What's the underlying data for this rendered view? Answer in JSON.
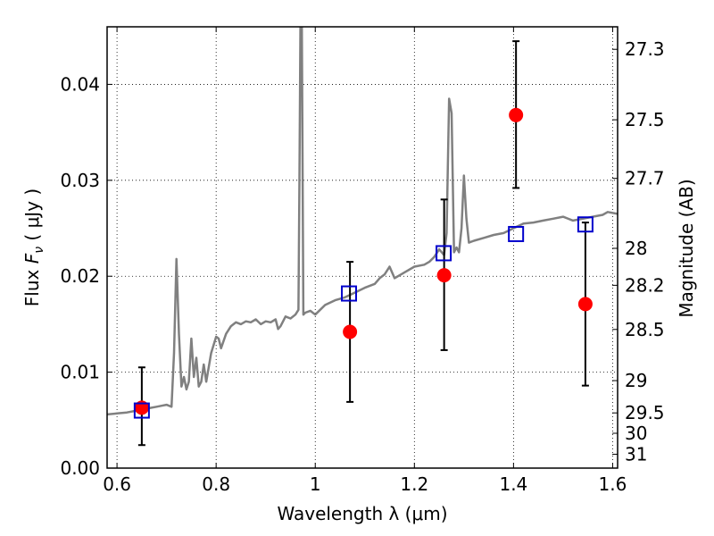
{
  "chart_data": {
    "type": "scatter",
    "title": "",
    "xlabel": "Wavelength  λ (μm)",
    "ylabel": "Flux  F_ν  ( μJy )",
    "ylabel_parts": {
      "prefix": "Flux  ",
      "symbol": "F",
      "subscript": "ν",
      "suffix": "  ( μJy )"
    },
    "y2label": "Magnitude (AB)",
    "xlim": [
      0.58,
      1.61
    ],
    "ylim": [
      0.0,
      0.046
    ],
    "grid": true,
    "x_ticks": [
      0.6,
      0.8,
      1.0,
      1.2,
      1.4,
      1.6
    ],
    "x_tick_labels": [
      "0.6",
      "0.8",
      "1",
      "1.2",
      "1.4",
      "1.6"
    ],
    "y_ticks": [
      0.0,
      0.01,
      0.02,
      0.03,
      0.04
    ],
    "y_tick_labels": [
      "0.00",
      "0.01",
      "0.02",
      "0.03",
      "0.04"
    ],
    "y2_ticks": [
      27.3,
      27.5,
      27.7,
      28,
      28.2,
      28.5,
      29,
      29.5,
      30,
      31
    ],
    "y2_tick_labels": [
      "27.3",
      "27.5",
      "27.7",
      "28",
      "28.2",
      "28.5",
      "29",
      "29.5",
      "30",
      "31"
    ],
    "colors": {
      "model": "#808080",
      "observed": "#ff0000",
      "model_photometry": "#0000cc",
      "errorbar": "#000000"
    },
    "series": [
      {
        "name": "model spectrum",
        "kind": "line",
        "x": [
          0.58,
          0.6,
          0.62,
          0.64,
          0.66,
          0.68,
          0.69,
          0.7,
          0.71,
          0.715,
          0.72,
          0.725,
          0.73,
          0.735,
          0.74,
          0.745,
          0.75,
          0.755,
          0.76,
          0.765,
          0.77,
          0.775,
          0.78,
          0.79,
          0.8,
          0.805,
          0.81,
          0.82,
          0.83,
          0.84,
          0.85,
          0.86,
          0.87,
          0.88,
          0.89,
          0.9,
          0.91,
          0.92,
          0.925,
          0.93,
          0.94,
          0.95,
          0.96,
          0.966,
          0.968,
          0.97,
          0.973,
          0.976,
          0.98,
          0.99,
          1.0,
          1.02,
          1.04,
          1.06,
          1.08,
          1.1,
          1.12,
          1.13,
          1.14,
          1.15,
          1.16,
          1.18,
          1.2,
          1.22,
          1.23,
          1.24,
          1.25,
          1.26,
          1.265,
          1.27,
          1.275,
          1.28,
          1.285,
          1.29,
          1.295,
          1.3,
          1.305,
          1.31,
          1.32,
          1.34,
          1.36,
          1.38,
          1.4,
          1.42,
          1.44,
          1.46,
          1.48,
          1.5,
          1.52,
          1.54,
          1.56,
          1.58,
          1.59,
          1.61
        ],
        "y": [
          0.0056,
          0.0057,
          0.0058,
          0.006,
          0.0062,
          0.0064,
          0.0065,
          0.0066,
          0.0064,
          0.012,
          0.0218,
          0.014,
          0.0085,
          0.0095,
          0.0082,
          0.009,
          0.0135,
          0.0095,
          0.0115,
          0.0085,
          0.009,
          0.0108,
          0.009,
          0.012,
          0.0137,
          0.0135,
          0.0125,
          0.014,
          0.0148,
          0.0152,
          0.015,
          0.0153,
          0.0152,
          0.0155,
          0.015,
          0.0153,
          0.0152,
          0.0155,
          0.0145,
          0.0148,
          0.0158,
          0.0156,
          0.016,
          0.0165,
          0.03,
          0.046,
          0.046,
          0.016,
          0.0162,
          0.0164,
          0.016,
          0.017,
          0.0175,
          0.0178,
          0.0183,
          0.0188,
          0.0192,
          0.0198,
          0.0202,
          0.021,
          0.0198,
          0.0204,
          0.021,
          0.0212,
          0.0215,
          0.022,
          0.0228,
          0.0222,
          0.0245,
          0.0385,
          0.037,
          0.0225,
          0.023,
          0.0225,
          0.025,
          0.0305,
          0.026,
          0.0235,
          0.0237,
          0.024,
          0.0243,
          0.0245,
          0.025,
          0.0255,
          0.0256,
          0.0258,
          0.026,
          0.0262,
          0.0258,
          0.026,
          0.0262,
          0.0264,
          0.0267,
          0.0265
        ]
      },
      {
        "name": "observed photometry",
        "kind": "errorbar",
        "x": [
          0.65,
          1.07,
          1.26,
          1.405,
          1.545
        ],
        "y": [
          0.0063,
          0.0142,
          0.0201,
          0.0368,
          0.0171
        ],
        "err_low": [
          0.0039,
          0.0073,
          0.0078,
          0.0076,
          0.0085
        ],
        "err_high": [
          0.0042,
          0.0073,
          0.0079,
          0.0077,
          0.0085
        ]
      },
      {
        "name": "model photometry",
        "kind": "scatter",
        "marker": "open-square",
        "x": [
          0.65,
          1.068,
          1.259,
          1.405,
          1.545
        ],
        "y": [
          0.006,
          0.0182,
          0.0224,
          0.0244,
          0.0254
        ]
      }
    ]
  }
}
